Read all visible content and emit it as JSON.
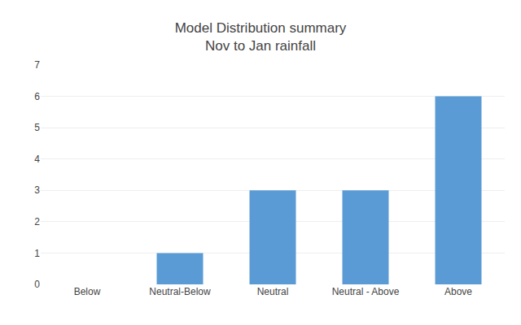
{
  "chart_data": {
    "type": "bar",
    "title": "Model Distribution summary",
    "subtitle": "Nov to Jan rainfall",
    "categories": [
      "Below",
      "Neutral-Below",
      "Neutral",
      "Neutral - Above",
      "Above"
    ],
    "values": [
      0,
      1,
      3,
      3,
      6
    ],
    "color": "#5b9bd5",
    "ylim": [
      0,
      7
    ],
    "yticks": [
      0,
      1,
      2,
      3,
      4,
      5,
      6,
      7
    ],
    "grid": true
  }
}
